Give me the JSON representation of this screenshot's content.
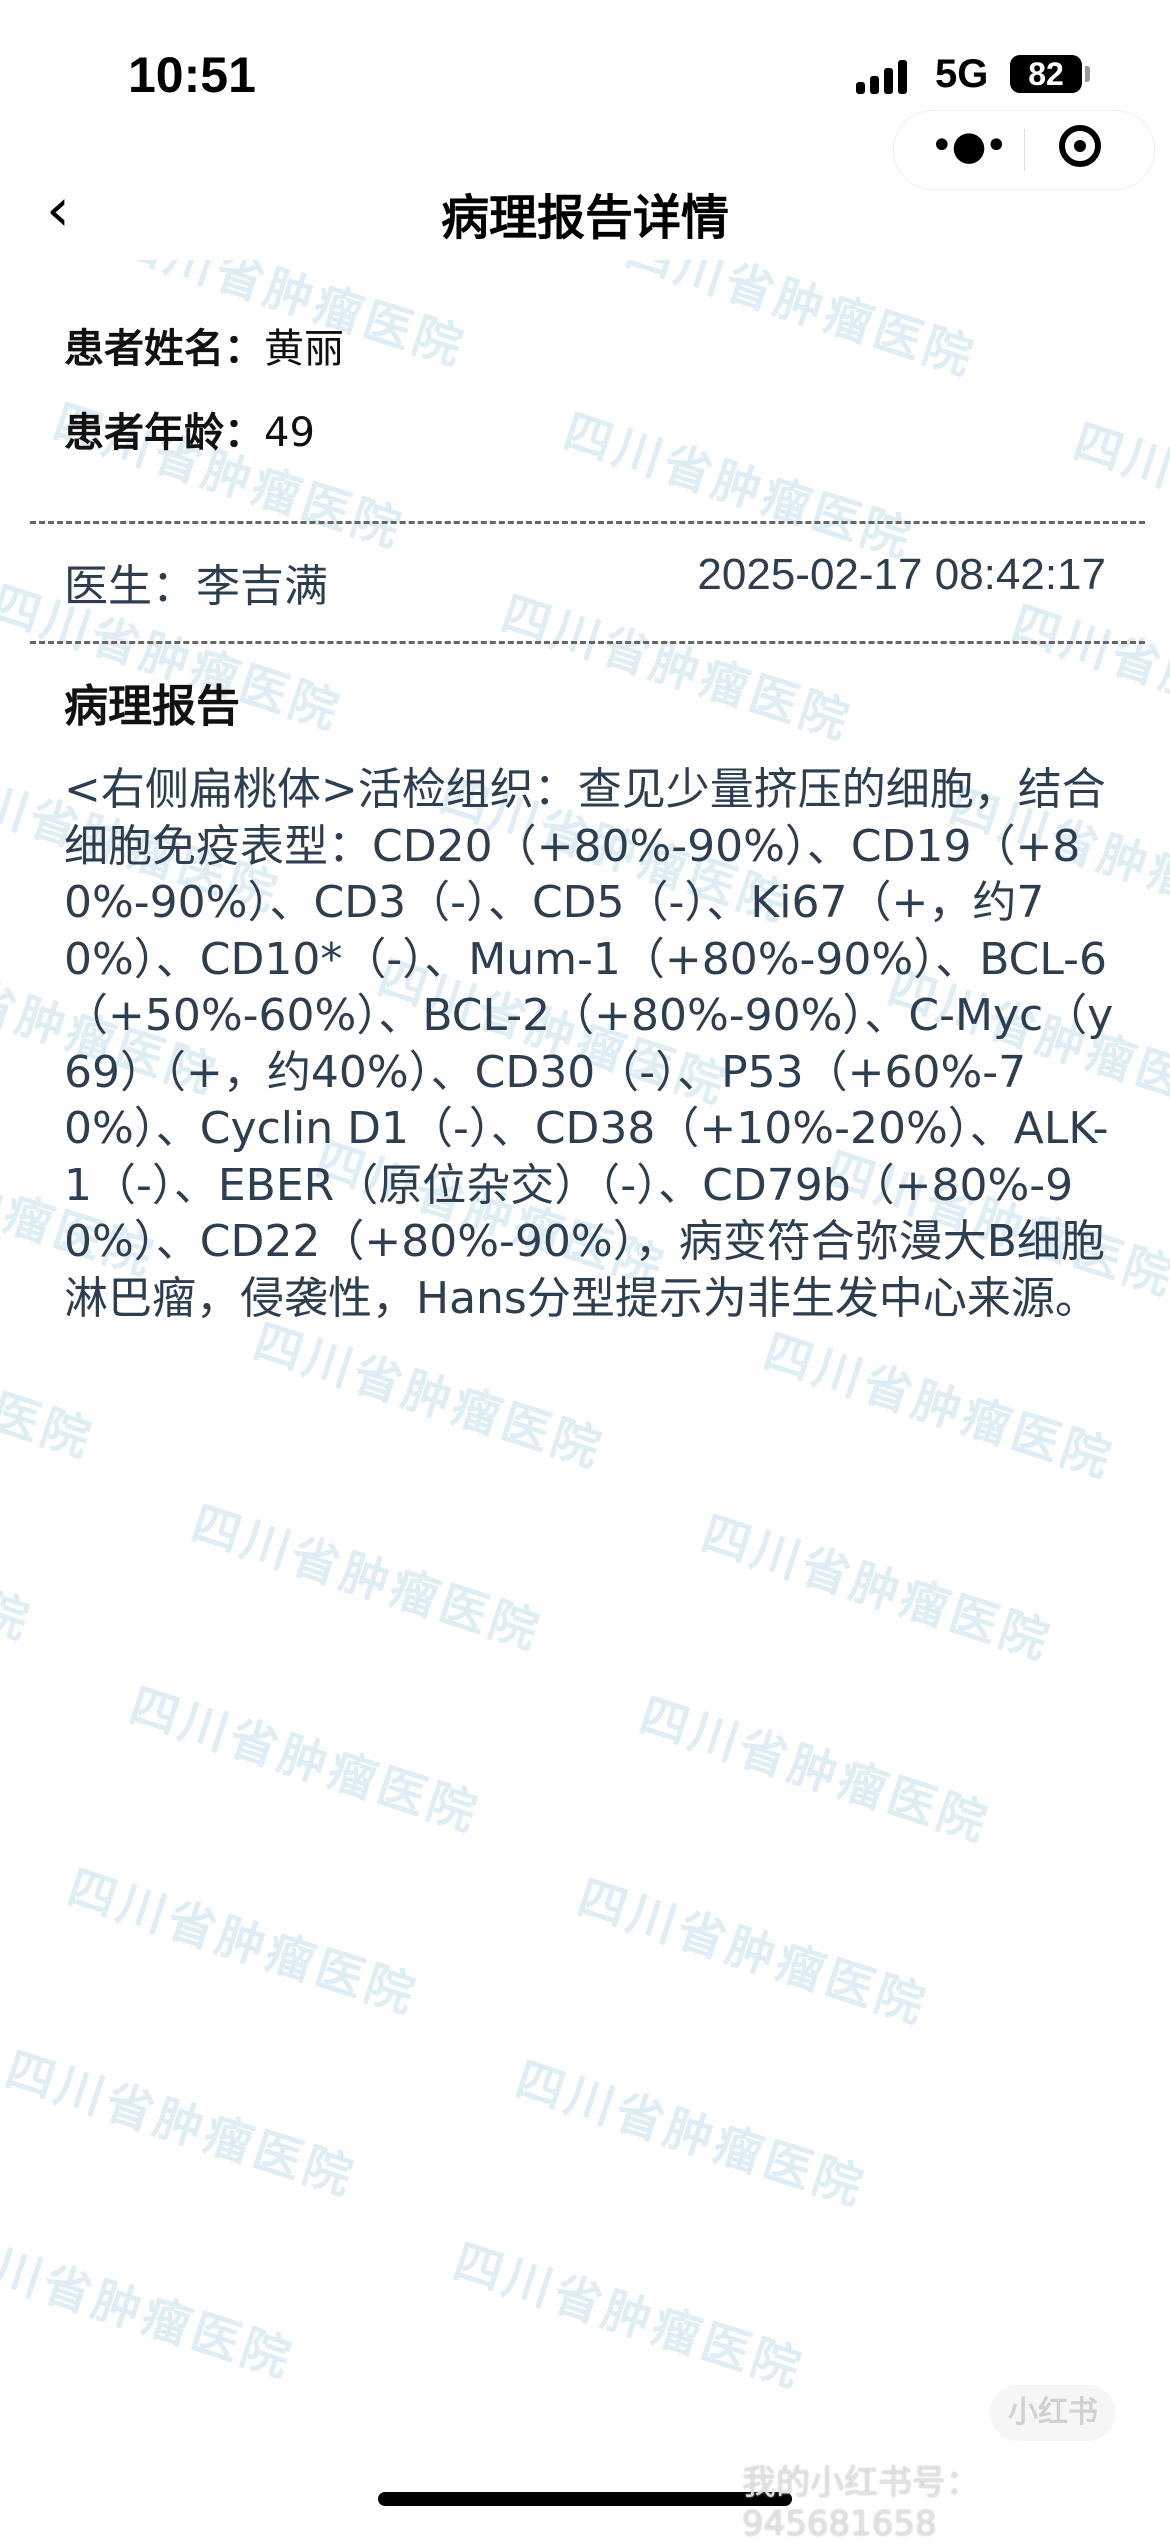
{
  "status_bar": {
    "time": "10:51",
    "network": "5G",
    "battery": "82"
  },
  "nav": {
    "title": "病理报告详情",
    "back_icon": "chevron-left-icon",
    "more_icon": "more-dots-icon",
    "close_icon": "record-circle-icon"
  },
  "patient": {
    "name_label": "患者姓名：",
    "name": "黄丽",
    "age_label": "患者年龄：",
    "age": "49"
  },
  "doctor": {
    "label": "医生：",
    "name": "李吉满",
    "timestamp": "2025-02-17 08:42:17"
  },
  "report": {
    "heading": "病理报告",
    "text": "<右侧扁桃体>活检组织：查见少量挤压的细胞，结合细胞免疫表型：CD20（+80%-90%）、CD19（+80%-90%）、CD3（-）、CD5（-）、Ki67（+，约70%）、CD10*（-）、Mum-1（+80%-90%）、BCL-6（+50%-60%）、BCL-2（+80%-90%）、C-Myc（y69）（+，约40%）、CD30（-）、P53（+60%-70%）、Cyclin D1（-）、CD38（+10%-20%）、ALK-1（-）、EBER（原位杂交）（-）、CD79b（+80%-90%）、CD22（+80%-90%），病变符合弥漫大B细胞淋巴瘤，侵袭性，Hans分型提示为非生发中心来源。"
  },
  "watermark": {
    "text": "四川省肿瘤医院",
    "color": "#6eafcd"
  },
  "overlay": {
    "badge": "小红书",
    "id_text": "我的小红书号：945681658"
  }
}
